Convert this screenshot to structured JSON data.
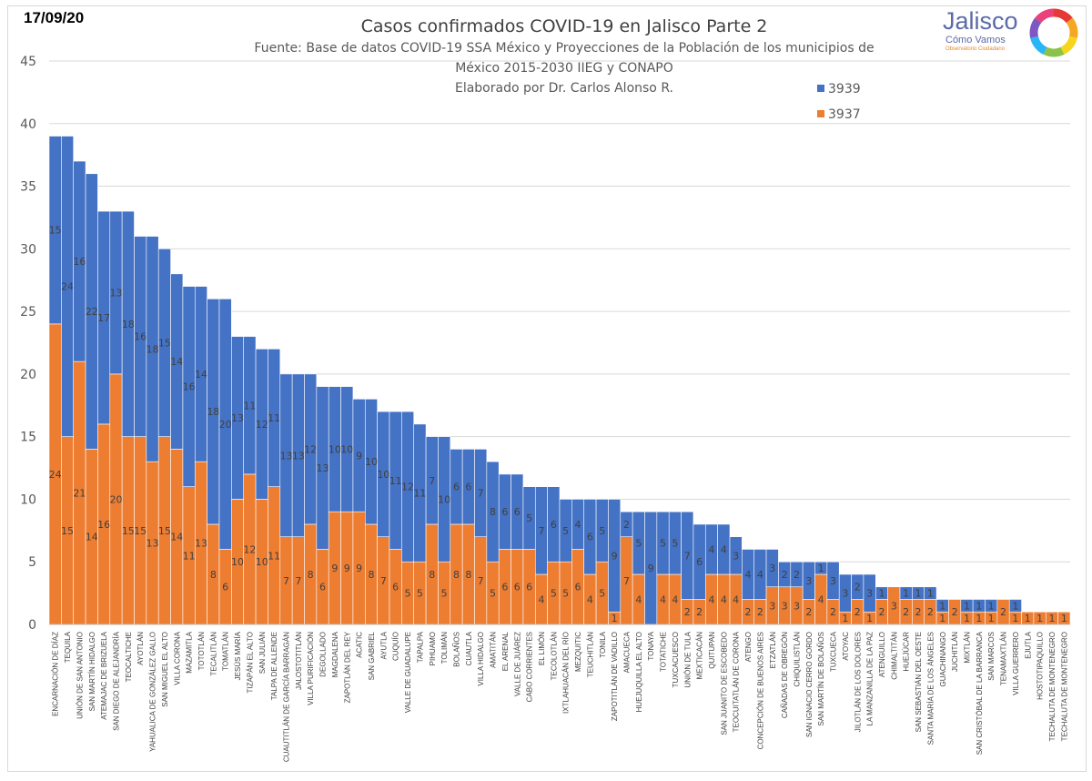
{
  "header": {
    "date": "17/09/20",
    "title": "Casos confirmados COVID-19 en Jalisco Parte 2",
    "subtitle_lines": [
      "Fuente: Base de datos COVID-19 SSA México y Proyecciones de la Población de los municipios de",
      "México 2015-2030 IIEG y CONAPO",
      "Elaborado por Dr. Carlos Alonso R."
    ]
  },
  "logo": {
    "name": "Jalisco",
    "tagline": "Cómo Vamos",
    "motto": "Observatorio Ciudadano",
    "colors": [
      "#e53935",
      "#f5a623",
      "#f7d51d",
      "#8bc34a",
      "#29b6f6",
      "#7e57c2",
      "#ec407a"
    ]
  },
  "colors": {
    "series_3939": "#4472c4",
    "series_3937": "#ed7d31",
    "gridline": "#d9d9d9",
    "label": "#404040"
  },
  "chart_data": {
    "type": "bar",
    "stacked": true,
    "title": "Casos confirmados COVID-19 en Jalisco Parte 2",
    "ylim": [
      0,
      45
    ],
    "yticks": [
      0,
      5,
      10,
      15,
      20,
      25,
      30,
      35,
      40,
      45
    ],
    "grid": true,
    "legend_position": "top-right",
    "categories": [
      "ENCARNACIÓN DE DÍAZ",
      "TEQUILA",
      "UNIÓN DE SAN ANTONIO",
      "SAN MARTÍN HIDALGO",
      "ATEMAJAC DE BRIZUELA",
      "SAN DIEGO DE ALEJANDRÍA",
      "TEOCALTICHE",
      "AYOTLÁN",
      "YAHUALICA DE GONZÁLEZ GALLO",
      "SAN MIGUEL EL ALTO",
      "VILLA CORONA",
      "MAZAMITLA",
      "TOTOTLÁN",
      "TECALITLÁN",
      "TOMATLÁN",
      "JESÚS MARÍA",
      "TIZAPÁN EL ALTO",
      "SAN JULIÁN",
      "TALPA DE ALLENDE",
      "CUAUTITLÁN DE GARCÍA BARRAGÁN",
      "JALOSTOTITLÁN",
      "VILLA PURIFICACIÓN",
      "DEGOLLADO",
      "MAGDALENA",
      "ZAPOTLÁN DEL REY",
      "ACATIC",
      "SAN GABRIEL",
      "AYUTLA",
      "CUQUÍO",
      "VALLE DE GUADALUPE",
      "TAPALPA",
      "PIHUAMO",
      "TOLIMÁN",
      "BOLAÑOS",
      "CUAUTLA",
      "VILLA HIDALGO",
      "AMATITÁN",
      "EL ARENAL",
      "VALLE DE JUÁREZ",
      "CABO CORRIENTES",
      "EL LIMÓN",
      "TECOLOTLÁN",
      "IXTLAHUACÁN DEL RÍO",
      "MEZQUITIC",
      "TEUCHITLÁN",
      "TONILA",
      "ZAPOTITLÁN DE VADILLO",
      "AMACUECA",
      "HUEJUQUILLA EL ALTO",
      "TONAYA",
      "TOTATICHE",
      "TUXCACUESCO",
      "UNIÓN DE TULA",
      "MEXTICACÁN",
      "QUITUPAN",
      "SAN JUANITO DE ESCOBEDO",
      "TEOCUITATLÁN DE CORONA",
      "ATENGO",
      "CONCEPCIÓN DE BUENOS AIRES",
      "ETZATLÁN",
      "CAÑADAS DE OBREGÓN",
      "CHIQUILISTLÁN",
      "SAN IGNACIO CERRO GORDO",
      "SAN MARTÍN DE BOLAÑOS",
      "TUXCUECA",
      "ATOYAC",
      "JILOTLÁN DE LOS DOLORES",
      "LA MANZANILLA DE LA PAZ",
      "ATENGUILLO",
      "CHIMALTITÁN",
      "HUEJÚCAR",
      "SAN SEBASTIÁN DEL OESTE",
      "SANTA MARÍA DE LOS ÁNGELES",
      "GUACHINANGO",
      "JUCHITLÁN",
      "MIXTLÁN",
      "SAN CRISTÓBAL DE LA BARRANCA",
      "SAN MARCOS",
      "TENAMAXTLÁN",
      "VILLA GUERRERO",
      "EJUTLA",
      "HOSTOTIPAQUILLO",
      "TECHALUTA DE MONTENEGRO",
      "TECHALUTA DE MONTENEGRO"
    ],
    "series": [
      {
        "name": "3937",
        "values": [
          24,
          15,
          21,
          14,
          16,
          20,
          15,
          15,
          13,
          15,
          14,
          11,
          13,
          8,
          6,
          10,
          12,
          10,
          11,
          7,
          7,
          8,
          6,
          9,
          9,
          9,
          8,
          7,
          6,
          5,
          5,
          8,
          5,
          8,
          8,
          7,
          5,
          6,
          6,
          6,
          4,
          5,
          5,
          6,
          4,
          5,
          1,
          7,
          4,
          0,
          4,
          4,
          2,
          2,
          4,
          4,
          4,
          2,
          2,
          3,
          3,
          3,
          2,
          4,
          2,
          1,
          2,
          1,
          2,
          3,
          2,
          2,
          2,
          1,
          2,
          1,
          1,
          1,
          2,
          1,
          1,
          1,
          1,
          1
        ]
      },
      {
        "name": "3939",
        "values": [
          15,
          24,
          16,
          22,
          17,
          13,
          18,
          16,
          18,
          15,
          14,
          16,
          14,
          18,
          20,
          13,
          11,
          12,
          11,
          13,
          13,
          12,
          13,
          10,
          10,
          9,
          10,
          10,
          11,
          12,
          11,
          7,
          10,
          6,
          6,
          7,
          8,
          6,
          6,
          5,
          7,
          6,
          5,
          4,
          6,
          5,
          9,
          2,
          5,
          9,
          5,
          5,
          7,
          6,
          4,
          4,
          3,
          4,
          4,
          3,
          2,
          2,
          3,
          1,
          3,
          3,
          2,
          3,
          1,
          0,
          1,
          1,
          1,
          1,
          0,
          1,
          1,
          1,
          0,
          1,
          0,
          0,
          0,
          0
        ]
      }
    ],
    "data_labels": {
      "3937": [
        "24",
        "15",
        "21",
        "14",
        "16",
        "20",
        "15",
        "15",
        "13",
        "15",
        "14",
        "11",
        "13",
        "8",
        "6",
        "10",
        "12",
        "10",
        "11",
        "7",
        "7",
        "8",
        "6",
        "9",
        "9",
        "9",
        "8",
        "7",
        "6",
        "5",
        "5",
        "8",
        "5",
        "8",
        "8",
        "7",
        "5",
        "6",
        "6",
        "6",
        "4",
        "5",
        "5",
        "6",
        "4",
        "5",
        "1",
        "7",
        "4",
        "",
        "4",
        "4",
        "2",
        "2",
        "4",
        "4",
        "4",
        "2",
        "2",
        "3",
        "3",
        "3",
        "2",
        "4",
        "2",
        "1",
        "2",
        "1",
        "2",
        "3",
        "2",
        "2",
        "2",
        "1",
        "2",
        "1",
        "1",
        "1",
        "2",
        "1",
        "1",
        "1",
        "1",
        "1"
      ],
      "3939": [
        "15",
        "24",
        "16",
        "22",
        "17",
        "13",
        "18",
        "16",
        "18",
        "15",
        "14",
        "16",
        "14",
        "18",
        "20",
        "13",
        "11",
        "12",
        "11",
        "13",
        "13",
        "12",
        "13",
        "10",
        "10",
        "9",
        "10",
        "10",
        "11",
        "12",
        "11",
        "7",
        "10",
        "6",
        "6",
        "7",
        "8",
        "6",
        "6",
        "5",
        "7",
        "6",
        "5",
        "4",
        "6",
        "5",
        "9",
        "2",
        "5",
        "9",
        "5",
        "5",
        "7",
        "6",
        "4",
        "4",
        "3",
        "4",
        "4",
        "3",
        "2",
        "2",
        "3",
        "1",
        "3",
        "3",
        "2",
        "3",
        "1",
        "",
        "1",
        "1",
        "1",
        "1",
        "",
        "1",
        "1",
        "1",
        "",
        "1",
        "",
        "",
        "",
        ""
      ]
    }
  }
}
